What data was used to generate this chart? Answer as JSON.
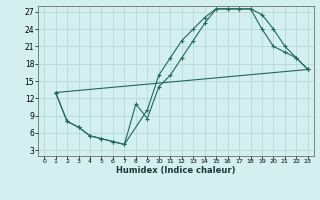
{
  "xlabel": "Humidex (Indice chaleur)",
  "bg_color": "#d4efef",
  "grid_color": "#b8d8d8",
  "line_color": "#1a6b5a",
  "xlim": [
    -0.5,
    23.5
  ],
  "ylim": [
    2,
    28
  ],
  "xticks": [
    0,
    1,
    2,
    3,
    4,
    5,
    6,
    7,
    8,
    9,
    10,
    11,
    12,
    13,
    14,
    15,
    16,
    17,
    18,
    19,
    20,
    21,
    22,
    23
  ],
  "yticks": [
    3,
    6,
    9,
    12,
    15,
    18,
    21,
    24,
    27
  ],
  "line1_x": [
    1,
    2,
    3,
    4,
    5,
    6,
    7,
    9,
    10,
    11,
    12,
    13,
    14,
    15,
    16,
    17,
    18,
    19,
    20,
    21,
    22,
    23
  ],
  "line1_y": [
    13,
    8,
    7,
    5.5,
    5,
    4.5,
    4,
    10,
    16,
    19,
    22,
    24,
    26,
    27.5,
    27.5,
    27.5,
    27.5,
    26.5,
    24,
    21,
    19,
    17
  ],
  "line2_x": [
    1,
    2,
    3,
    4,
    5,
    6,
    7,
    8,
    9,
    10,
    11,
    12,
    13,
    14,
    15,
    16,
    17,
    18,
    19,
    20,
    21,
    22,
    23
  ],
  "line2_y": [
    13,
    8,
    7,
    5.5,
    5,
    4.5,
    4,
    11,
    8.5,
    14,
    16,
    19,
    22,
    25,
    27.5,
    27.5,
    27.5,
    27.5,
    24,
    21,
    20,
    19,
    17
  ],
  "line3_x": [
    1,
    23
  ],
  "line3_y": [
    13,
    17
  ]
}
